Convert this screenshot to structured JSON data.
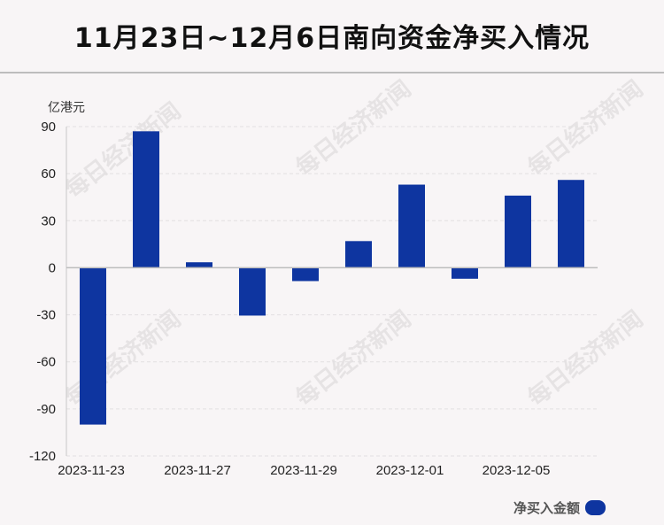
{
  "header": {
    "title": "11月23日~12月6日南向资金净买入情况"
  },
  "watermark": "每日经济新闻",
  "chart_data": {
    "type": "bar",
    "title": "11月23日~12月6日南向资金净买入情况",
    "ylabel": "亿港元",
    "xlabel": "",
    "ylim": [
      -120,
      90
    ],
    "yticks": [
      90,
      60,
      30,
      0,
      -30,
      -60,
      -90,
      -120
    ],
    "x_tick_labels": [
      "2023-11-23",
      "2023-11-27",
      "2023-11-29",
      "2023-12-01",
      "2023-12-05"
    ],
    "grid": true,
    "legend_position": "bottom-right",
    "bar_color": "#0e35a0",
    "series": [
      {
        "name": "净买入金额",
        "values": [
          -100,
          87,
          3.5,
          -30.5,
          -8.5,
          17,
          53,
          -7,
          46,
          56
        ]
      }
    ]
  }
}
